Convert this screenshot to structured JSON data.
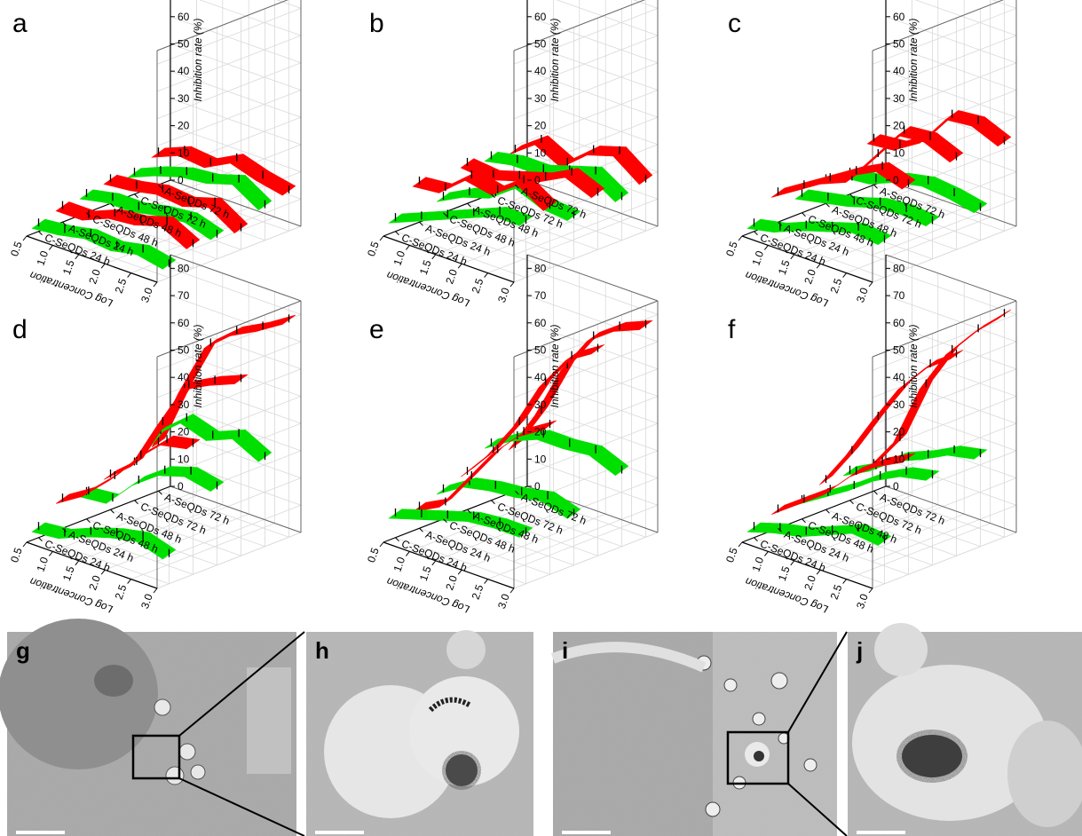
{
  "chart_data": {
    "type": "ribbon3d",
    "x_axis_title": "Log Concentration",
    "x_ticks": [
      "3.0",
      "2.5",
      "2.0",
      "1.5",
      "1.0",
      "0.5"
    ],
    "x_values": [
      3.0,
      2.5,
      2.0,
      1.5,
      1.0,
      0.5
    ],
    "y_categories": [
      "C-SeQDs 24 h",
      "A-SeQDs 24 h",
      "C-SeQDs 48 h",
      "A-SeQDs 48 h",
      "C-SeQDs 72 h",
      "A-SeQDs 72 h"
    ],
    "z_axis_title": "Inhibition rate (%)",
    "z_ticks": [
      "0",
      "10",
      "20",
      "30",
      "40",
      "50",
      "60",
      "70",
      "80"
    ],
    "zlim": [
      0,
      85
    ],
    "series_colors": {
      "C-SeQDs": "#00e000",
      "A-SeQDs": "#ff0000"
    },
    "panels": [
      {
        "label": "a",
        "series": [
          {
            "name": "C-SeQDs 24 h",
            "values": [
              4,
              6,
              4,
              5,
              3,
              2
            ]
          },
          {
            "name": "A-SeQDs 24 h",
            "values": [
              8,
              13,
              10,
              9,
              5,
              5
            ]
          },
          {
            "name": "C-SeQDs 48 h",
            "values": [
              8,
              11,
              10,
              8,
              8,
              6
            ]
          },
          {
            "name": "A-SeQDs 48 h",
            "values": [
              7,
              13,
              10,
              11,
              9,
              8
            ]
          },
          {
            "name": "C-SeQDs 72 h",
            "values": [
              12,
              18,
              15,
              14,
              11,
              7
            ]
          },
          {
            "name": "A-SeQDs 72 h",
            "values": [
              14,
              16,
              19,
              14,
              15,
              11
            ]
          }
        ]
      },
      {
        "label": "b",
        "series": [
          {
            "name": "C-SeQDs 24 h",
            "values": [
              20,
              20,
              16,
              12,
              8,
              4
            ]
          },
          {
            "name": "A-SeQDs 24 h",
            "values": [
              22,
              28,
              21,
              23,
              15,
              14
            ]
          },
          {
            "name": "C-SeQDs 48 h",
            "values": [
              15,
              16,
              20,
              13,
              10,
              5
            ]
          },
          {
            "name": "A-SeQDs 48 h",
            "values": [
              20,
              24,
              19,
              16,
              13,
              14
            ]
          },
          {
            "name": "C-SeQDs 72 h",
            "values": [
              15,
              21,
              18,
              15,
              15,
              13
            ]
          },
          {
            "name": "A-SeQDs 72 h",
            "values": [
              18,
              25,
              22,
              14,
              19,
              12
            ]
          }
        ]
      },
      {
        "label": "c",
        "series": [
          {
            "name": "C-SeQDs 24 h",
            "values": [
              13,
              14,
              11,
              8,
              4,
              2
            ]
          },
          {
            "name": "A-SeQDs 24 h",
            "values": [
              30,
              33,
              28,
              22,
              16,
              10
            ]
          },
          {
            "name": "C-SeQDs 48 h",
            "values": [
              13,
              14,
              13,
              10,
              8,
              6
            ]
          },
          {
            "name": "A-SeQDs 48 h",
            "values": [
              33,
              37,
              36,
              24,
              12,
              8
            ]
          },
          {
            "name": "C-SeQDs 72 h",
            "values": [
              11,
              13,
              14,
              12,
              8,
              7
            ]
          },
          {
            "name": "A-SeQDs 72 h",
            "values": [
              32,
              36,
              35,
              23,
              17,
              16
            ]
          }
        ]
      },
      {
        "label": "d",
        "series": [
          {
            "name": "C-SeQDs 24 h",
            "values": [
              10,
              13,
              11,
              8,
              4,
              3
            ]
          },
          {
            "name": "A-SeQDs 24 h",
            "values": [
              47,
              45,
              36,
              25,
              16,
              10
            ]
          },
          {
            "name": "C-SeQDs 48 h",
            "values": [
              28,
              30,
              27,
              20,
              10,
              9
            ]
          },
          {
            "name": "A-SeQDs 48 h",
            "values": [
              64,
              60,
              55,
              38,
              20,
              12
            ]
          },
          {
            "name": "C-SeQDs 72 h",
            "values": [
              32,
              37,
              33,
              36,
              28,
              13
            ]
          },
          {
            "name": "A-SeQDs 72 h",
            "values": [
              79,
              73,
              68,
              60,
              40,
              17
            ]
          }
        ]
      },
      {
        "label": "e",
        "series": [
          {
            "name": "C-SeQDs 24 h",
            "values": [
              18,
              18,
              17,
              14,
              11,
              8
            ]
          },
          {
            "name": "A-SeQDs 24 h",
            "values": [
              54,
              48,
              38,
              25,
              12,
              7
            ]
          },
          {
            "name": "C-SeQDs 48 h",
            "values": [
              18,
              21,
              19,
              18,
              16,
              10
            ]
          },
          {
            "name": "A-SeQDs 48 h",
            "values": [
              75,
              69,
              56,
              38,
              24,
              13
            ]
          },
          {
            "name": "C-SeQDs 72 h",
            "values": [
              27,
              31,
              30,
              30,
              26,
              20
            ]
          },
          {
            "name": "A-SeQDs 72 h",
            "values": [
              77,
              73,
              66,
              52,
              32,
              16
            ]
          }
        ]
      },
      {
        "label": "f",
        "series": [
          {
            "name": "C-SeQDs 24 h",
            "values": [
              15,
              16,
              12,
              8,
              6,
              3
            ]
          },
          {
            "name": "A-SeQDs 24 h",
            "values": [
              42,
              37,
              30,
              20,
              13,
              6
            ]
          },
          {
            "name": "C-SeQDs 48 h",
            "values": [
              32,
              30,
              25,
              18,
              12,
              6
            ]
          },
          {
            "name": "A-SeQDs 48 h",
            "values": [
              73,
              66,
              55,
              40,
              24,
              10
            ]
          },
          {
            "name": "C-SeQDs 72 h",
            "values": [
              33,
              31,
              26,
              22,
              15,
              10
            ]
          },
          {
            "name": "A-SeQDs 72 h",
            "values": [
              81,
              72,
              61,
              45,
              22,
              9
            ]
          }
        ]
      }
    ]
  },
  "tem_panels": [
    {
      "label": "g",
      "zoom_source": true
    },
    {
      "label": "h",
      "zoom_source": false
    },
    {
      "label": "i",
      "zoom_source": true
    },
    {
      "label": "j",
      "zoom_source": false
    }
  ]
}
